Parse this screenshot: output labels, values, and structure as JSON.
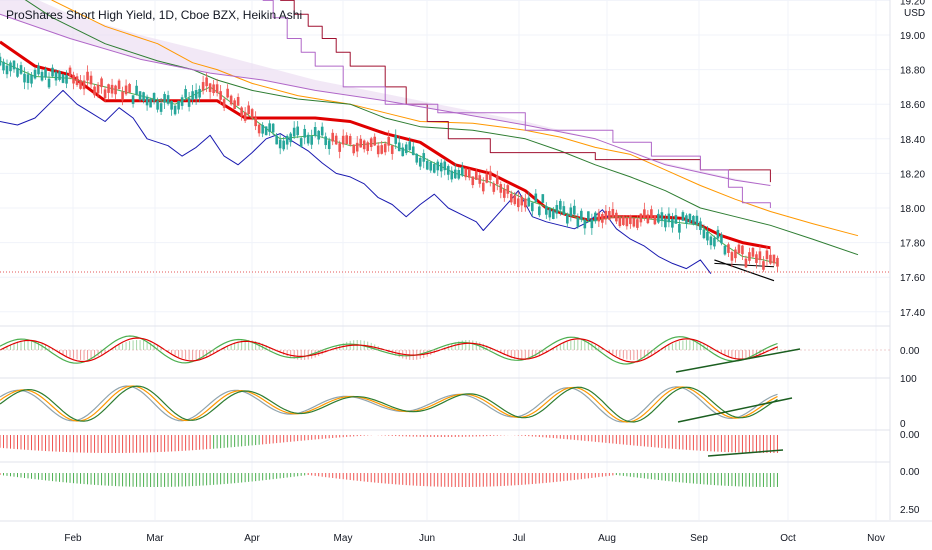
{
  "header": {
    "title": "ProShares Short High Yield, 1D, Cboe BZX, Heikin Ashi",
    "currency": "USD"
  },
  "chart_data": {
    "type": "line",
    "title": "ProShares Short High Yield, 1D, Cboe BZX, Heikin Ashi",
    "price_axis": {
      "ticks": [
        "19.20",
        "19.00",
        "18.80",
        "18.60",
        "18.40",
        "18.20",
        "18.00",
        "17.80",
        "17.60",
        "17.40"
      ],
      "ylim": [
        17.36,
        19.25
      ]
    },
    "osc1_axis": {
      "ticks": [
        "0.00"
      ]
    },
    "osc2_axis": {
      "ticks": [
        "100",
        "0"
      ]
    },
    "osc3_axis": {
      "ticks": [
        "0.00"
      ]
    },
    "osc4_axis": {
      "ticks": [
        "0.00",
        "2.50"
      ]
    },
    "time_axis": {
      "labels": [
        "Feb",
        "Mar",
        "Apr",
        "May",
        "Jun",
        "Jul",
        "Aug",
        "Sep",
        "Oct",
        "Nov"
      ]
    },
    "x_range": [
      0,
      230
    ],
    "series": [
      {
        "id": "red_ma",
        "color": "#e00000",
        "points": [
          [
            0,
            18.96
          ],
          [
            10,
            18.82
          ],
          [
            20,
            18.77
          ],
          [
            30,
            18.62
          ],
          [
            40,
            18.62
          ],
          [
            50,
            18.62
          ],
          [
            62,
            18.62
          ],
          [
            70,
            18.52
          ],
          [
            80,
            18.52
          ],
          [
            90,
            18.52
          ],
          [
            100,
            18.5
          ],
          [
            110,
            18.43
          ],
          [
            120,
            18.38
          ],
          [
            130,
            18.25
          ],
          [
            140,
            18.2
          ],
          [
            150,
            18.1
          ],
          [
            156,
            18.0
          ],
          [
            162,
            17.96
          ],
          [
            168,
            17.93
          ],
          [
            174,
            17.95
          ],
          [
            180,
            17.95
          ],
          [
            188,
            17.95
          ],
          [
            195,
            17.94
          ],
          [
            200,
            17.9
          ],
          [
            206,
            17.84
          ],
          [
            212,
            17.8
          ],
          [
            220,
            17.77
          ]
        ]
      },
      {
        "id": "orange_line",
        "color": "#ff9800",
        "points": [
          [
            0,
            19.4
          ],
          [
            15,
            19.2
          ],
          [
            30,
            19.05
          ],
          [
            45,
            18.95
          ],
          [
            55,
            18.84
          ],
          [
            62,
            18.8
          ],
          [
            72,
            18.72
          ],
          [
            85,
            18.65
          ],
          [
            100,
            18.6
          ],
          [
            110,
            18.55
          ],
          [
            120,
            18.5
          ],
          [
            135,
            18.49
          ],
          [
            150,
            18.45
          ],
          [
            160,
            18.41
          ],
          [
            170,
            18.35
          ],
          [
            180,
            18.31
          ],
          [
            190,
            18.22
          ],
          [
            200,
            18.13
          ],
          [
            210,
            18.05
          ],
          [
            220,
            17.98
          ],
          [
            232,
            17.91
          ],
          [
            245,
            17.84
          ]
        ]
      },
      {
        "id": "dark_green_line",
        "color": "#2e7d32",
        "points": [
          [
            0,
            19.3
          ],
          [
            15,
            19.1
          ],
          [
            30,
            18.95
          ],
          [
            45,
            18.85
          ],
          [
            55,
            18.8
          ],
          [
            62,
            18.74
          ],
          [
            72,
            18.68
          ],
          [
            85,
            18.63
          ],
          [
            100,
            18.6
          ],
          [
            110,
            18.52
          ],
          [
            120,
            18.47
          ],
          [
            135,
            18.45
          ],
          [
            150,
            18.4
          ],
          [
            160,
            18.33
          ],
          [
            170,
            18.25
          ],
          [
            180,
            18.18
          ],
          [
            190,
            18.1
          ],
          [
            200,
            18.0
          ],
          [
            210,
            17.95
          ],
          [
            220,
            17.9
          ],
          [
            232,
            17.82
          ],
          [
            245,
            17.73
          ]
        ]
      },
      {
        "id": "blue_line",
        "color": "#1a1ab0",
        "points": [
          [
            0,
            18.5
          ],
          [
            5,
            18.48
          ],
          [
            10,
            18.52
          ],
          [
            15,
            18.62
          ],
          [
            18,
            18.68
          ],
          [
            22,
            18.6
          ],
          [
            26,
            18.55
          ],
          [
            30,
            18.5
          ],
          [
            34,
            18.58
          ],
          [
            38,
            18.52
          ],
          [
            42,
            18.4
          ],
          [
            48,
            18.36
          ],
          [
            52,
            18.3
          ],
          [
            56,
            18.35
          ],
          [
            60,
            18.42
          ],
          [
            64,
            18.3
          ],
          [
            68,
            18.25
          ],
          [
            72,
            18.32
          ],
          [
            76,
            18.4
          ],
          [
            80,
            18.43
          ],
          [
            84,
            18.38
          ],
          [
            88,
            18.33
          ],
          [
            92,
            18.26
          ],
          [
            96,
            18.2
          ],
          [
            100,
            18.18
          ],
          [
            104,
            18.14
          ],
          [
            108,
            18.06
          ],
          [
            112,
            18.02
          ],
          [
            116,
            17.95
          ],
          [
            120,
            18.02
          ],
          [
            124,
            18.08
          ],
          [
            128,
            18.0
          ],
          [
            132,
            17.96
          ],
          [
            136,
            17.92
          ],
          [
            138,
            17.87
          ],
          [
            142,
            17.96
          ],
          [
            146,
            18.05
          ],
          [
            148,
            18.1
          ],
          [
            152,
            17.95
          ],
          [
            156,
            17.92
          ],
          [
            160,
            17.9
          ],
          [
            164,
            17.88
          ],
          [
            168,
            17.92
          ],
          [
            172,
            17.99
          ],
          [
            176,
            17.88
          ],
          [
            180,
            17.82
          ],
          [
            184,
            17.78
          ],
          [
            188,
            17.72
          ],
          [
            192,
            17.68
          ],
          [
            196,
            17.65
          ],
          [
            200,
            17.7
          ],
          [
            203,
            17.62
          ]
        ]
      },
      {
        "id": "light_green_line",
        "color": "#4caf50",
        "points": [
          [
            0,
            18.85
          ],
          [
            10,
            18.76
          ],
          [
            20,
            18.75
          ],
          [
            30,
            18.7
          ],
          [
            40,
            18.65
          ],
          [
            50,
            18.6
          ],
          [
            60,
            18.7
          ],
          [
            70,
            18.55
          ],
          [
            80,
            18.4
          ],
          [
            90,
            18.42
          ],
          [
            100,
            18.36
          ],
          [
            110,
            18.38
          ],
          [
            120,
            18.3
          ],
          [
            130,
            18.2
          ],
          [
            140,
            18.15
          ],
          [
            150,
            18.05
          ],
          [
            160,
            17.98
          ],
          [
            168,
            17.92
          ],
          [
            176,
            17.95
          ],
          [
            184,
            17.94
          ],
          [
            192,
            17.92
          ],
          [
            200,
            17.9
          ],
          [
            206,
            17.8
          ],
          [
            212,
            17.72
          ],
          [
            218,
            17.7
          ],
          [
            222,
            17.68
          ]
        ]
      },
      {
        "id": "maroon_step",
        "color": "#a01030",
        "points": [
          [
            80,
            19.2
          ],
          [
            84,
            19.2
          ],
          [
            84,
            19.12
          ],
          [
            88,
            19.12
          ],
          [
            88,
            19.05
          ],
          [
            92,
            19.05
          ],
          [
            92,
            18.98
          ],
          [
            96,
            18.98
          ],
          [
            96,
            18.9
          ],
          [
            100,
            18.9
          ],
          [
            100,
            18.82
          ],
          [
            110,
            18.82
          ],
          [
            110,
            18.7
          ],
          [
            116,
            18.7
          ],
          [
            116,
            18.6
          ],
          [
            122,
            18.6
          ],
          [
            122,
            18.5
          ],
          [
            128,
            18.5
          ],
          [
            128,
            18.4
          ],
          [
            140,
            18.4
          ],
          [
            140,
            18.32
          ],
          [
            170,
            18.32
          ],
          [
            170,
            18.28
          ],
          [
            200,
            18.28
          ],
          [
            200,
            18.22
          ],
          [
            220,
            18.22
          ],
          [
            220,
            18.15
          ]
        ]
      },
      {
        "id": "purple_step",
        "color": "#b067c8",
        "points": [
          [
            75,
            19.2
          ],
          [
            78,
            19.2
          ],
          [
            78,
            19.1
          ],
          [
            82,
            19.1
          ],
          [
            82,
            18.98
          ],
          [
            86,
            18.98
          ],
          [
            86,
            18.9
          ],
          [
            90,
            18.9
          ],
          [
            90,
            18.82
          ],
          [
            98,
            18.82
          ],
          [
            98,
            18.7
          ],
          [
            110,
            18.7
          ],
          [
            110,
            18.6
          ],
          [
            125,
            18.6
          ],
          [
            125,
            18.55
          ],
          [
            150,
            18.55
          ],
          [
            150,
            18.45
          ],
          [
            175,
            18.45
          ],
          [
            175,
            18.38
          ],
          [
            186,
            18.38
          ],
          [
            186,
            18.3
          ],
          [
            200,
            18.3
          ],
          [
            200,
            18.22
          ],
          [
            208,
            18.22
          ],
          [
            208,
            18.12
          ],
          [
            212,
            18.12
          ],
          [
            212,
            18.03
          ],
          [
            220,
            18.03
          ],
          [
            220,
            18.0
          ]
        ]
      },
      {
        "id": "purple_cloud_lower",
        "color": "#b067c8",
        "points": [
          [
            0,
            19.12
          ],
          [
            20,
            18.98
          ],
          [
            40,
            18.86
          ],
          [
            60,
            18.78
          ],
          [
            75,
            18.74
          ],
          [
            90,
            18.68
          ],
          [
            110,
            18.62
          ],
          [
            130,
            18.55
          ],
          [
            150,
            18.48
          ],
          [
            170,
            18.4
          ],
          [
            190,
            18.25
          ],
          [
            210,
            18.16
          ],
          [
            220,
            18.13
          ]
        ]
      },
      {
        "id": "wedge_line",
        "color": "#000000",
        "points": [
          [
            204,
            17.7
          ],
          [
            221,
            17.58
          ]
        ]
      }
    ],
    "candles_note": "Heikin Ashi red/green candles",
    "oscillator_panes": [
      {
        "name": "macd_like",
        "series_colors": [
          "#4caf50",
          "#e00000"
        ]
      },
      {
        "name": "stoch_like",
        "series_colors": [
          "#2e7d32",
          "#ff9800",
          "#90a4ae"
        ]
      },
      {
        "name": "histogram_1",
        "colors": [
          "#e00000",
          "#4caf50"
        ]
      },
      {
        "name": "histogram_2",
        "colors": [
          "#e00000",
          "#4caf50"
        ]
      }
    ]
  },
  "colors": {
    "grid": "#f0f3fa",
    "axis_text": "#131722",
    "price_line": "#e35757"
  }
}
